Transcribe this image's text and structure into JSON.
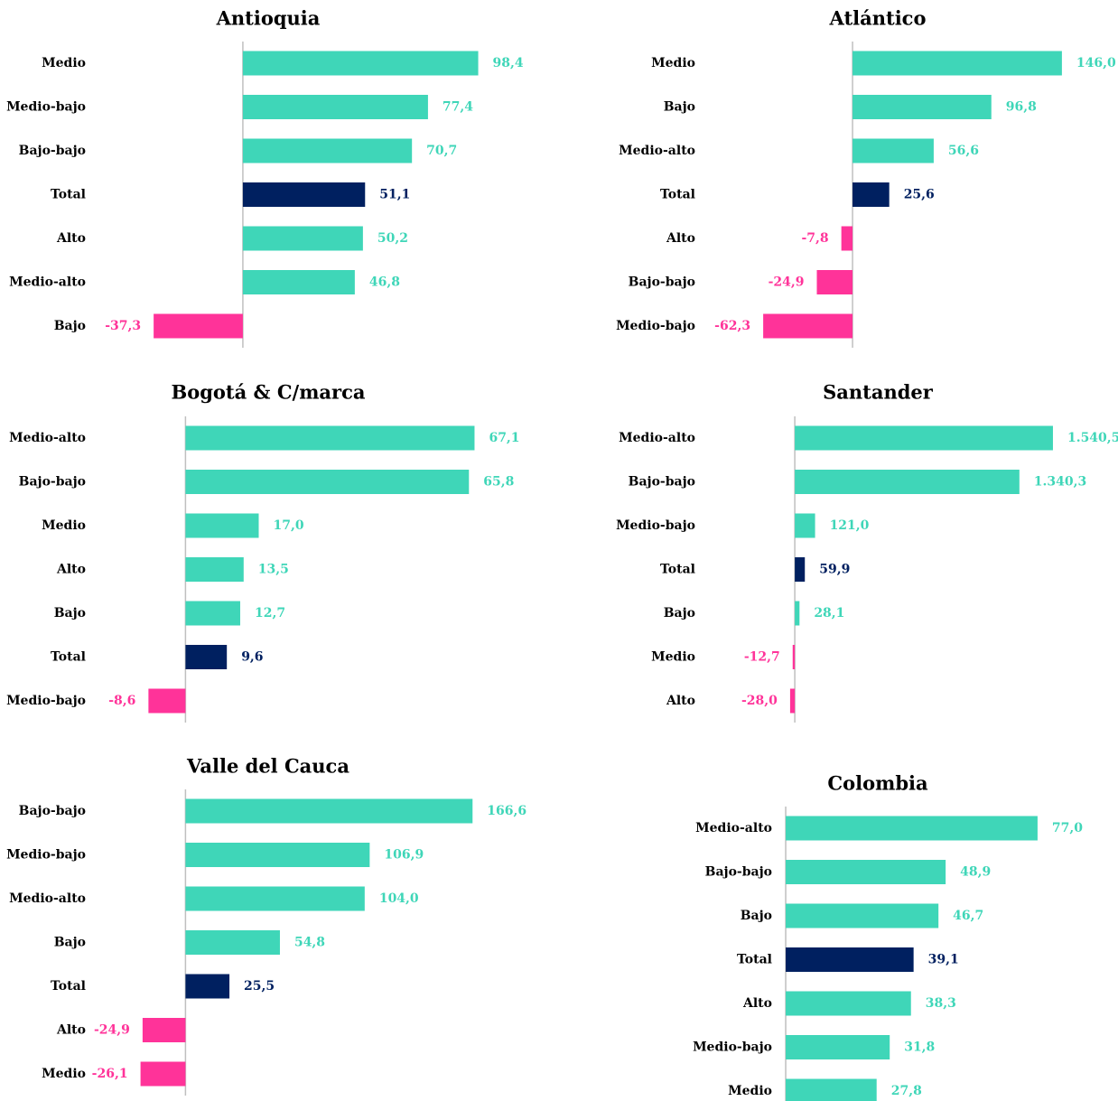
{
  "chart_data": [
    {
      "type": "bar",
      "title": "Antioquia",
      "categories": [
        "Medio",
        "Medio-bajo",
        "Bajo-bajo",
        "Total",
        "Alto",
        "Medio-alto",
        "Bajo"
      ],
      "values": [
        98.4,
        77.4,
        70.7,
        51.1,
        50.2,
        46.8,
        -37.3
      ],
      "value_labels": [
        "98,4",
        "77,4",
        "70,7",
        "51,1",
        "50,2",
        "46,8",
        "-37,3"
      ],
      "colors": [
        "#3fd6b8",
        "#3fd6b8",
        "#3fd6b8",
        "#002060",
        "#3fd6b8",
        "#3fd6b8",
        "#ff3399"
      ],
      "xlim": [
        -60,
        125
      ]
    },
    {
      "type": "bar",
      "title": "Atlántico",
      "categories": [
        "Medio",
        "Bajo",
        "Medio-alto",
        "Total",
        "Alto",
        "Bajo-bajo",
        "Medio-bajo"
      ],
      "values": [
        146.0,
        96.8,
        56.6,
        25.6,
        -7.8,
        -24.9,
        -62.3
      ],
      "value_labels": [
        "146,0",
        "96,8",
        "56,6",
        "25,6",
        "-7,8",
        "-24,9",
        "-62,3"
      ],
      "colors": [
        "#3fd6b8",
        "#3fd6b8",
        "#3fd6b8",
        "#002060",
        "#ff3399",
        "#ff3399",
        "#ff3399"
      ],
      "xlim": [
        -80,
        170
      ]
    },
    {
      "type": "bar",
      "title": "Bogotá & C/marca",
      "categories": [
        "Medio-alto",
        "Bajo-bajo",
        "Medio",
        "Alto",
        "Bajo",
        "Total",
        "Medio-bajo"
      ],
      "values": [
        67.1,
        65.8,
        17.0,
        13.5,
        12.7,
        9.6,
        -8.6
      ],
      "value_labels": [
        "67,1",
        "65,8",
        "17,0",
        "13,5",
        "12,7",
        "9,6",
        "-8,6"
      ],
      "colors": [
        "#3fd6b8",
        "#3fd6b8",
        "#3fd6b8",
        "#3fd6b8",
        "#3fd6b8",
        "#002060",
        "#ff3399"
      ],
      "xlim": [
        -20,
        80
      ]
    },
    {
      "type": "bar",
      "title": "Santander",
      "categories": [
        "Medio-alto",
        "Bajo-bajo",
        "Medio-bajo",
        "Total",
        "Bajo",
        "Medio",
        "Alto"
      ],
      "values": [
        1540.5,
        1340.3,
        121.0,
        59.9,
        28.1,
        -12.7,
        -28.0
      ],
      "value_labels": [
        "1.540,5",
        "1.340,3",
        "121,0",
        "59,9",
        "28,1",
        "-12,7",
        "-28,0"
      ],
      "colors": [
        "#3fd6b8",
        "#3fd6b8",
        "#3fd6b8",
        "#002060",
        "#3fd6b8",
        "#ff3399",
        "#ff3399"
      ],
      "xlim": [
        -200,
        1600
      ]
    },
    {
      "type": "bar",
      "title": "Valle del Cauca",
      "categories": [
        "Bajo-bajo",
        "Medio-bajo",
        "Medio-alto",
        "Bajo",
        "Total",
        "Alto",
        "Medio"
      ],
      "values": [
        166.6,
        106.9,
        104.0,
        54.8,
        25.5,
        -24.9,
        -26.1
      ],
      "value_labels": [
        "166,6",
        "106,9",
        "104,0",
        "54,8",
        "25,5",
        "-24,9",
        "-26,1"
      ],
      "colors": [
        "#3fd6b8",
        "#3fd6b8",
        "#3fd6b8",
        "#3fd6b8",
        "#002060",
        "#ff3399",
        "#ff3399"
      ],
      "xlim": [
        -50,
        200
      ]
    },
    {
      "type": "bar",
      "title": "Colombia",
      "categories": [
        "Medio-alto",
        "Bajo-bajo",
        "Bajo",
        "Total",
        "Alto",
        "Medio-bajo",
        "Medio"
      ],
      "values": [
        77.0,
        48.9,
        46.7,
        39.1,
        38.3,
        31.8,
        27.8
      ],
      "value_labels": [
        "77,0",
        "48,9",
        "46,7",
        "39,1",
        "38,3",
        "31,8",
        "27,8"
      ],
      "colors": [
        "#3fd6b8",
        "#3fd6b8",
        "#3fd6b8",
        "#002060",
        "#3fd6b8",
        "#3fd6b8",
        "#3fd6b8"
      ],
      "xlim": [
        -20,
        90
      ]
    }
  ]
}
